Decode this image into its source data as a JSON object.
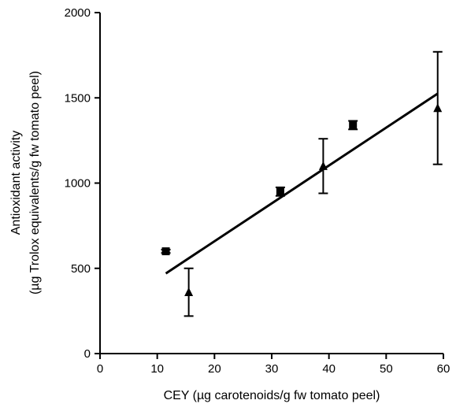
{
  "chart_data": {
    "type": "scatter",
    "xlabel": "CEY (µg carotenoids/g fw tomato peel)",
    "ylabel_lines": [
      "Antioxidant activity",
      "(µg Trolox equivalents/g fw tomato peel)"
    ],
    "xlim": [
      0,
      60
    ],
    "ylim": [
      0,
      2000
    ],
    "x_ticks": [
      0,
      10,
      20,
      30,
      40,
      50,
      60
    ],
    "y_ticks": [
      0,
      500,
      1000,
      1500,
      2000
    ],
    "grid": false,
    "legend": "none",
    "series": [
      {
        "marker": "square",
        "points": [
          {
            "x": 11.5,
            "y": 600,
            "err": 10
          },
          {
            "x": 31.5,
            "y": 950,
            "err": 25
          },
          {
            "x": 44.2,
            "y": 1340,
            "err": 25
          }
        ]
      },
      {
        "marker": "triangle",
        "points": [
          {
            "x": 15.5,
            "y": 360,
            "err": 140
          },
          {
            "x": 39.0,
            "y": 1100,
            "err": 160
          },
          {
            "x": 59.0,
            "y": 1440,
            "err": 330
          }
        ]
      }
    ],
    "fit_line": {
      "x": [
        11.5,
        59.0
      ],
      "y": [
        470,
        1525
      ]
    }
  }
}
